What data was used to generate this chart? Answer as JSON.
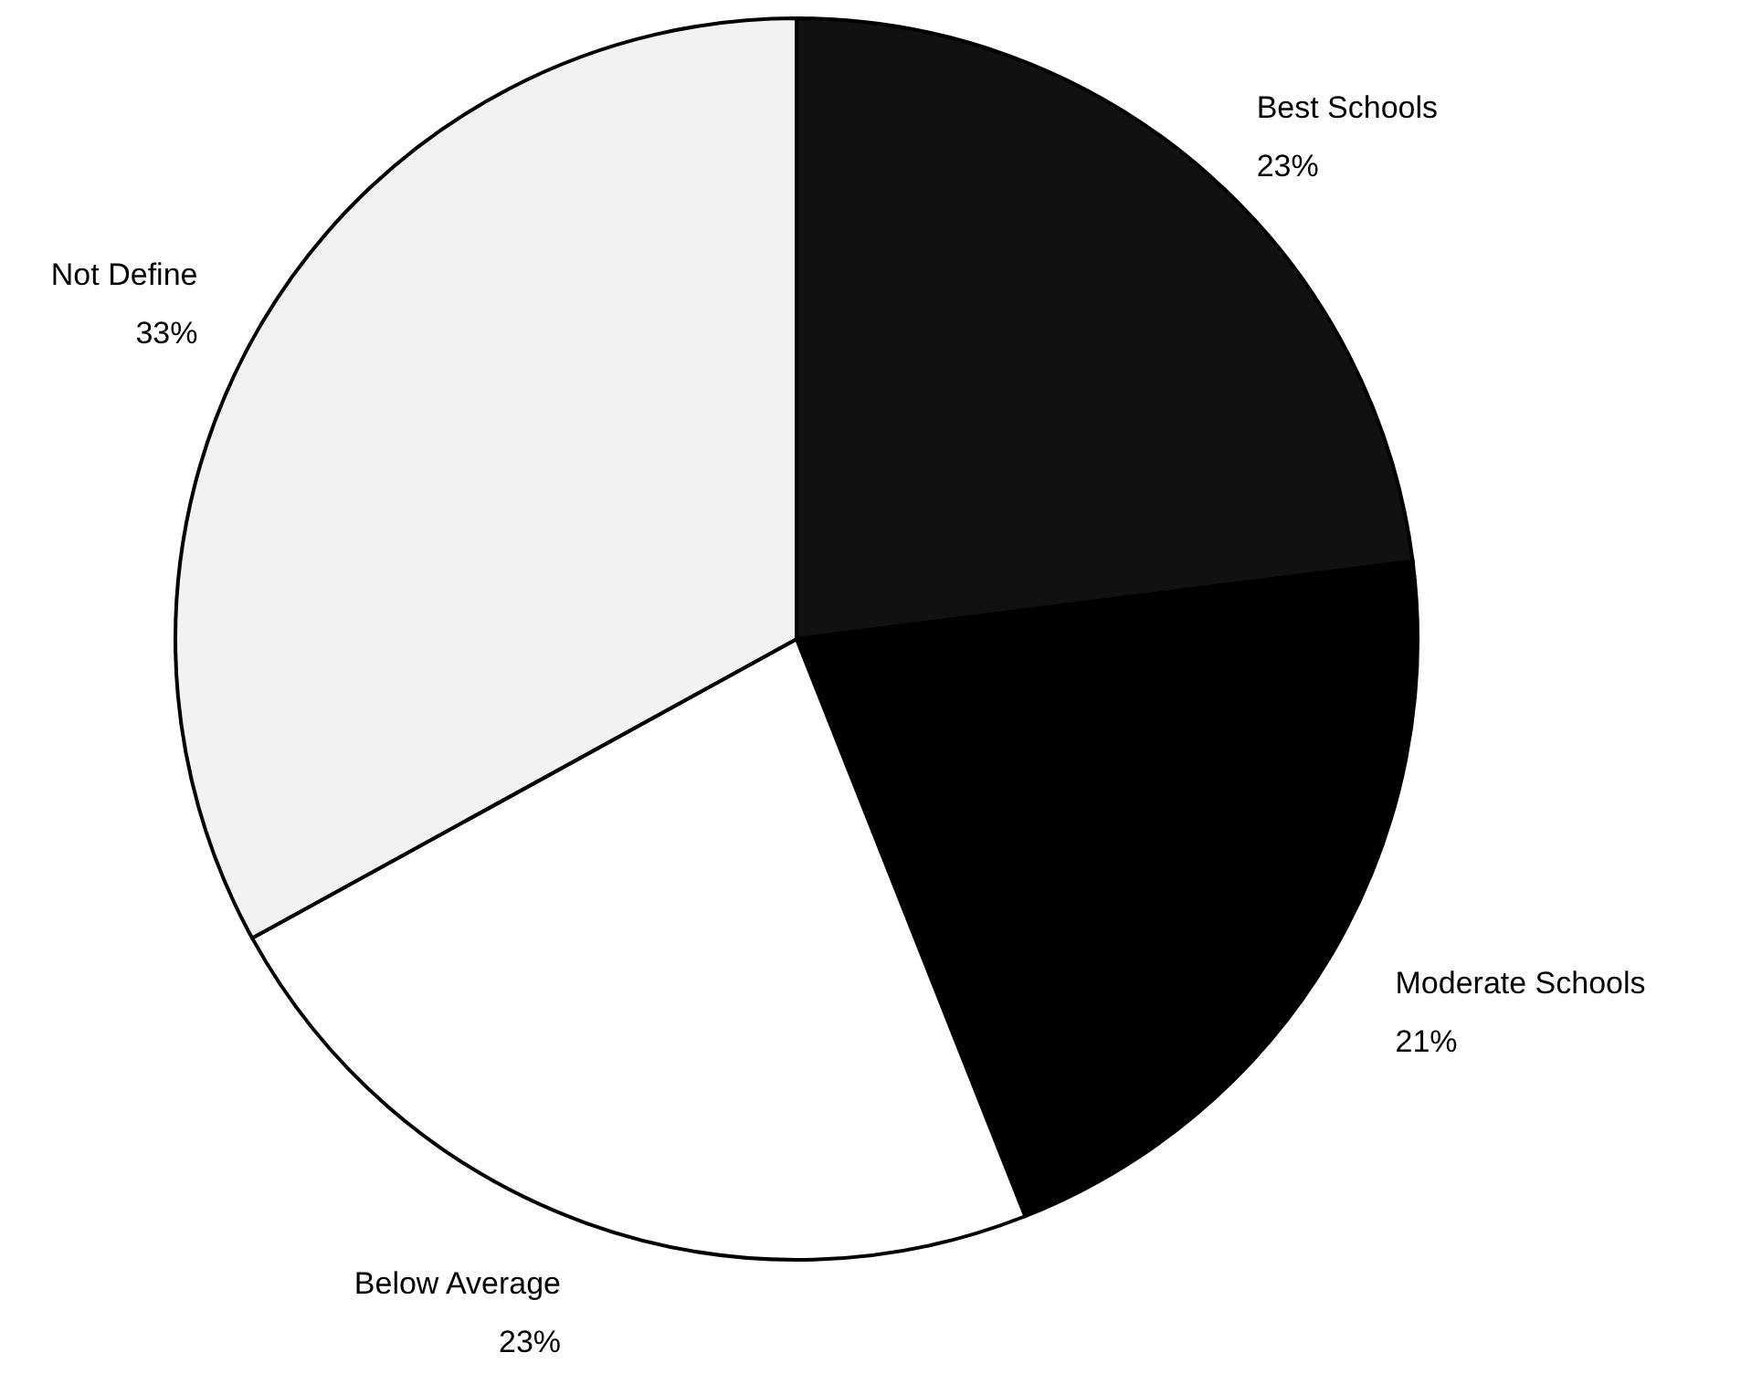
{
  "chart_data": {
    "type": "pie",
    "categories": [
      "Best Schools",
      "Moderate Schools",
      "Below Average",
      "Not Define"
    ],
    "values": [
      23,
      21,
      23,
      33
    ],
    "colors": [
      "#111111",
      "#000000",
      "#ffffff",
      "#f2f2f2"
    ],
    "value_labels": [
      "23%",
      "21%",
      "23%",
      "33%"
    ]
  }
}
